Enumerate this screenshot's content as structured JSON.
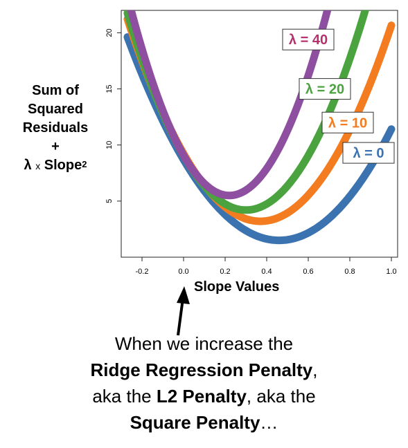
{
  "chart_data": {
    "type": "line",
    "xlabel": "Slope Values",
    "ylabel": {
      "line1": "Sum of",
      "line2": "Squared",
      "line3": "Residuals",
      "line4": "+",
      "lambda": "λ",
      "times": "x",
      "slope": "Slope",
      "exponent": "2"
    },
    "xlim": [
      -0.3,
      1.03
    ],
    "ylim": [
      0,
      22
    ],
    "x_ticks": [
      -0.2,
      0.0,
      0.2,
      0.4,
      0.6,
      0.8,
      1.0
    ],
    "x_tick_labels": [
      "-0.2",
      "0.0",
      "0.2",
      "0.4",
      "0.6",
      "0.8",
      "1.0"
    ],
    "y_ticks": [
      5,
      10,
      15,
      20
    ],
    "y_tick_labels": [
      "5",
      "10",
      "15",
      "20"
    ],
    "x_range": [
      -0.27,
      1.0
    ],
    "series": [
      {
        "name": "λ = 0",
        "vertex_x": 0.46,
        "vertex_y": 1.5,
        "curvature": 34.0,
        "color": "#3b72b0",
        "label_x": 0.89,
        "label_y": 9.3
      },
      {
        "name": "λ = 10",
        "vertex_x": 0.37,
        "vertex_y": 3.2,
        "curvature": 44.0,
        "color": "#f47c20",
        "label_x": 0.79,
        "label_y": 12.0
      },
      {
        "name": "λ = 20",
        "vertex_x": 0.3,
        "vertex_y": 4.2,
        "curvature": 54.0,
        "color": "#4aa33f",
        "label_x": 0.68,
        "label_y": 15.0
      },
      {
        "name": "λ = 40",
        "vertex_x": 0.22,
        "vertex_y": 5.5,
        "curvature": 74.0,
        "color": "#8e4fa0",
        "label_x": 0.6,
        "label_y": 19.4
      }
    ],
    "label_colors": {
      "λ = 40": "#b5316d"
    },
    "annotation_arrow": {
      "x": 0.0,
      "color": "#000000"
    }
  },
  "caption": {
    "line1": "When we increase the",
    "line2_bold": "Ridge Regression Penalty",
    "line2_tail": ",",
    "line3_pre": "aka the ",
    "line3_bold": "L2 Penalty",
    "line3_post": ", aka the",
    "line4_bold": "Square Penalty",
    "line4_tail": "…"
  }
}
